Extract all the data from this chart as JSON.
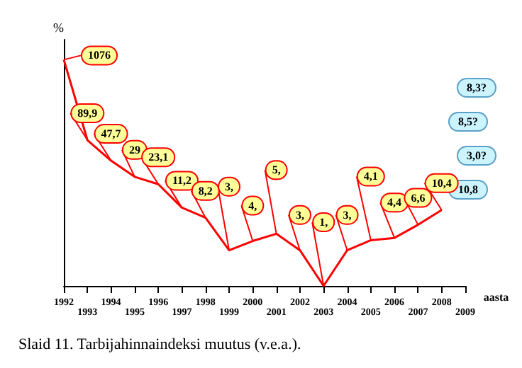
{
  "chart_data": {
    "type": "line",
    "title": "Slaid 11. Tarbijahinnaindeksi muutus (v.e.a.).",
    "xlabel": "aasta",
    "ylabel": "%",
    "categories": [
      "1992",
      "1993",
      "1994",
      "1995",
      "1996",
      "1997",
      "1998",
      "1999",
      "2000",
      "2001",
      "2002",
      "2003",
      "2004",
      "2005",
      "2006",
      "2007",
      "2008",
      "2009"
    ],
    "series": [
      {
        "color": "#ff0000",
        "values": [
          1076,
          89.9,
          47.7,
          29,
          23.1,
          11.2,
          8.2,
          3,
          4,
          5,
          3,
          1,
          3,
          4.1,
          4.4,
          6.6,
          10.4,
          null
        ],
        "value_labels": [
          "1076",
          "89,9",
          "47,7",
          "29",
          "23,1",
          "11,2",
          "8,2",
          "3,",
          "4,",
          "5,",
          "3,",
          "1,",
          "3,",
          "4,1",
          "4,4",
          "6,6",
          "10,4",
          null
        ]
      }
    ],
    "ylim": [
      1,
      2000
    ],
    "log": true,
    "tick_labels": "x",
    "grid": false,
    "marker": "none",
    "annotations": [
      "8,3?",
      "8,5?",
      "3,0?",
      "10,8"
    ]
  }
}
